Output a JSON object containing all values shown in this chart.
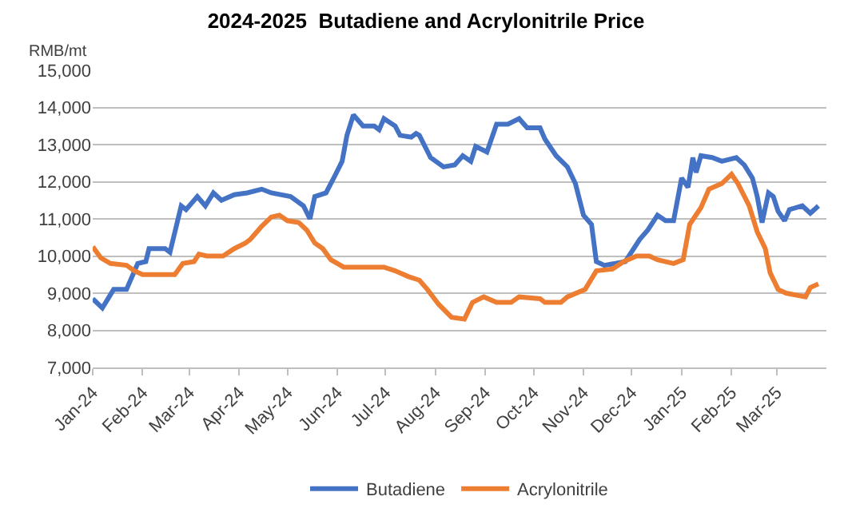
{
  "chart_data": {
    "type": "line",
    "title": "2024-2025  Butadiene and Acrylonitrile Price",
    "ylabel": "RMB/mt",
    "xlim": [
      "2024-01-01",
      "2025-04-01"
    ],
    "xticks": [
      {
        "value": "2024-01-01",
        "label": "Jan-24"
      },
      {
        "value": "2024-02-01",
        "label": "Feb-24"
      },
      {
        "value": "2024-03-01",
        "label": "Mar-24"
      },
      {
        "value": "2024-04-01",
        "label": "Apr-24"
      },
      {
        "value": "2024-05-01",
        "label": "May-24"
      },
      {
        "value": "2024-06-01",
        "label": "Jun-24"
      },
      {
        "value": "2024-07-01",
        "label": "Jul-24"
      },
      {
        "value": "2024-08-01",
        "label": "Aug-24"
      },
      {
        "value": "2024-09-01",
        "label": "Sep-24"
      },
      {
        "value": "2024-10-01",
        "label": "Oct-24"
      },
      {
        "value": "2024-11-01",
        "label": "Nov-24"
      },
      {
        "value": "2024-12-01",
        "label": "Dec-24"
      },
      {
        "value": "2025-01-01",
        "label": "Jan-25"
      },
      {
        "value": "2025-02-01",
        "label": "Feb-25"
      },
      {
        "value": "2025-03-01",
        "label": "Mar-25"
      }
    ],
    "ylim": [
      7000,
      15000
    ],
    "yticks": [
      {
        "value": 7000,
        "label": "7,000"
      },
      {
        "value": 8000,
        "label": "8,000"
      },
      {
        "value": 9000,
        "label": "9,000"
      },
      {
        "value": 10000,
        "label": "10,000"
      },
      {
        "value": 11000,
        "label": "11,000"
      },
      {
        "value": 12000,
        "label": "12,000"
      },
      {
        "value": 13000,
        "label": "13,000"
      },
      {
        "value": 14000,
        "label": "14,000"
      },
      {
        "value": 15000,
        "label": "15,000"
      }
    ],
    "grid": "y",
    "legend": "bottom",
    "marker": "none",
    "line_style": "solid",
    "series": [
      {
        "name": "Butadiene",
        "color": "#4472c4",
        "x": [
          "2024-01-01",
          "2024-01-07",
          "2024-01-14",
          "2024-01-22",
          "2024-01-29",
          "2024-02-03",
          "2024-02-05",
          "2024-02-15",
          "2024-02-18",
          "2024-02-25",
          "2024-02-28",
          "2024-03-06",
          "2024-03-11",
          "2024-03-16",
          "2024-03-21",
          "2024-03-29",
          "2024-04-06",
          "2024-04-15",
          "2024-04-21",
          "2024-05-03",
          "2024-05-11",
          "2024-05-15",
          "2024-05-18",
          "2024-05-25",
          "2024-05-31",
          "2024-06-04",
          "2024-06-07",
          "2024-06-11",
          "2024-06-17",
          "2024-06-24",
          "2024-06-27",
          "2024-06-30",
          "2024-07-07",
          "2024-07-10",
          "2024-07-17",
          "2024-07-20",
          "2024-07-22",
          "2024-07-29",
          "2024-08-06",
          "2024-08-13",
          "2024-08-18",
          "2024-08-23",
          "2024-08-26",
          "2024-09-02",
          "2024-09-08",
          "2024-09-15",
          "2024-09-22",
          "2024-09-27",
          "2024-10-05",
          "2024-10-08",
          "2024-10-15",
          "2024-10-22",
          "2024-10-27",
          "2024-11-01",
          "2024-11-06",
          "2024-11-09",
          "2024-11-14",
          "2024-11-21",
          "2024-11-27",
          "2024-12-06",
          "2024-12-11",
          "2024-12-17",
          "2024-12-22",
          "2024-12-27",
          "2025-01-01",
          "2025-01-05",
          "2025-01-08",
          "2025-01-10",
          "2025-01-13",
          "2025-01-20",
          "2025-01-26",
          "2025-02-04",
          "2025-02-09",
          "2025-02-14",
          "2025-02-17",
          "2025-02-20",
          "2025-02-24",
          "2025-02-27",
          "2025-03-02",
          "2025-03-06",
          "2025-03-09",
          "2025-03-17",
          "2025-03-22",
          "2025-03-27"
        ],
        "values": [
          8850,
          8600,
          9100,
          9100,
          9800,
          9850,
          10200,
          10200,
          10100,
          11350,
          11250,
          11600,
          11350,
          11700,
          11500,
          11650,
          11700,
          11800,
          11700,
          11600,
          11350,
          11000,
          11600,
          11700,
          12200,
          12550,
          13250,
          13800,
          13500,
          13500,
          13400,
          13700,
          13500,
          13250,
          13200,
          13300,
          13250,
          12650,
          12400,
          12450,
          12700,
          12550,
          12950,
          12800,
          13550,
          13550,
          13700,
          13450,
          13450,
          13150,
          12700,
          12400,
          11950,
          11100,
          10850,
          9850,
          9750,
          9800,
          9850,
          10450,
          10700,
          11100,
          10950,
          10950,
          12100,
          11850,
          12650,
          12250,
          12700,
          12650,
          12550,
          12650,
          12450,
          12100,
          11600,
          10900,
          11700,
          11600,
          11200,
          10950,
          11250,
          11350,
          11150,
          11350
        ]
      },
      {
        "name": "Acrylonitrile",
        "color": "#ed7d31",
        "x": [
          "2024-01-01",
          "2024-01-06",
          "2024-01-12",
          "2024-01-22",
          "2024-01-27",
          "2024-02-01",
          "2024-02-21",
          "2024-02-26",
          "2024-03-04",
          "2024-03-07",
          "2024-03-12",
          "2024-03-22",
          "2024-03-29",
          "2024-04-05",
          "2024-04-08",
          "2024-04-15",
          "2024-04-21",
          "2024-04-26",
          "2024-05-01",
          "2024-05-08",
          "2024-05-13",
          "2024-05-18",
          "2024-05-23",
          "2024-05-28",
          "2024-06-05",
          "2024-06-30",
          "2024-07-07",
          "2024-07-15",
          "2024-07-22",
          "2024-07-27",
          "2024-08-03",
          "2024-08-11",
          "2024-08-19",
          "2024-08-24",
          "2024-08-31",
          "2024-09-08",
          "2024-09-17",
          "2024-09-22",
          "2024-10-05",
          "2024-10-08",
          "2024-10-18",
          "2024-10-22",
          "2024-11-02",
          "2024-11-09",
          "2024-11-19",
          "2024-11-26",
          "2024-12-04",
          "2024-12-12",
          "2024-12-17",
          "2024-12-27",
          "2025-01-02",
          "2025-01-06",
          "2025-01-13",
          "2025-01-18",
          "2025-01-26",
          "2025-02-01",
          "2025-02-05",
          "2025-02-12",
          "2025-02-17",
          "2025-02-22",
          "2025-02-25",
          "2025-03-02",
          "2025-03-07",
          "2025-03-19",
          "2025-03-22",
          "2025-03-27"
        ],
        "values": [
          10250,
          9950,
          9800,
          9750,
          9600,
          9500,
          9500,
          9800,
          9850,
          10050,
          10000,
          10000,
          10200,
          10350,
          10450,
          10800,
          11050,
          11100,
          10950,
          10900,
          10700,
          10350,
          10200,
          9900,
          9700,
          9700,
          9600,
          9450,
          9350,
          9100,
          8700,
          8350,
          8300,
          8750,
          8900,
          8750,
          8750,
          8900,
          8850,
          8750,
          8750,
          8900,
          9100,
          9600,
          9650,
          9850,
          10000,
          10000,
          9900,
          9800,
          9900,
          10850,
          11300,
          11800,
          11950,
          12200,
          11950,
          11350,
          10650,
          10200,
          9550,
          9100,
          9000,
          8900,
          9150,
          9250
        ]
      }
    ]
  }
}
